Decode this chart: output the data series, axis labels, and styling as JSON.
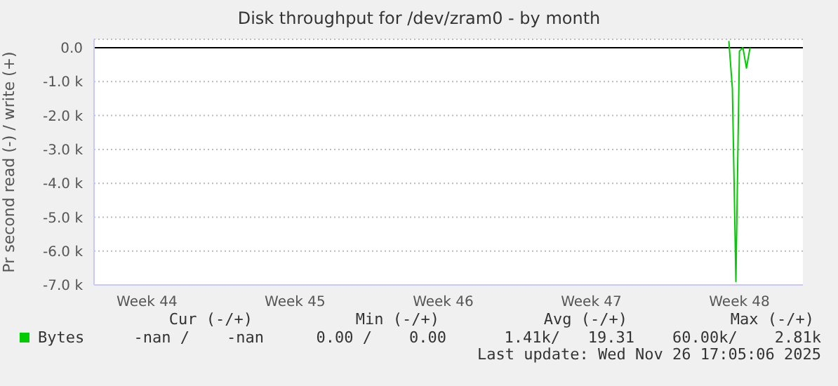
{
  "chart_data": {
    "type": "line",
    "title": "Disk throughput for /dev/zram0 - by month",
    "ylabel": "Pr second read (-) / write (+)",
    "categories": [
      null,
      null,
      null,
      null,
      null,
      null,
      null,
      null,
      null,
      null,
      null,
      null,
      null,
      null,
      null,
      "Week 44",
      null,
      null,
      null,
      null,
      null,
      null,
      null,
      null,
      null,
      null,
      null,
      null,
      null,
      null,
      null,
      null,
      null,
      null,
      null,
      null,
      null,
      null,
      null,
      null,
      null,
      null,
      null,
      null,
      null,
      null,
      null,
      null,
      null,
      null,
      null,
      null,
      null,
      null,
      null,
      null,
      null,
      "Week 45",
      null,
      null,
      null,
      null,
      null,
      null,
      null,
      null,
      null,
      null,
      null,
      null,
      null,
      null,
      null,
      null,
      null,
      null,
      null,
      null,
      null,
      null,
      null,
      null,
      null,
      null,
      null,
      null,
      null,
      null,
      null,
      null,
      null,
      null,
      null,
      null,
      null,
      null,
      null,
      null,
      null,
      "Week 46",
      null,
      null,
      null,
      null,
      null,
      null,
      null,
      null,
      null,
      null,
      null,
      null,
      null,
      null,
      null,
      null,
      null,
      null,
      null,
      null,
      null,
      null,
      null,
      null,
      null,
      null,
      null,
      null,
      null,
      null,
      null,
      null,
      null,
      null,
      null,
      null,
      null,
      null,
      null,
      null,
      null,
      "Week 47",
      null,
      null,
      null,
      null,
      null,
      null,
      null,
      null,
      null,
      null,
      null,
      null,
      null,
      null,
      null,
      null,
      null,
      null,
      null,
      null,
      null,
      null,
      null,
      null,
      null,
      null,
      null,
      null,
      null,
      null,
      null,
      null,
      null,
      null,
      null,
      null,
      null,
      null,
      null,
      null,
      null,
      "Week 48",
      null,
      null,
      null,
      null,
      null,
      null,
      null,
      null,
      null,
      null,
      null,
      null,
      null,
      null,
      null,
      null,
      null,
      null
    ],
    "series": [
      {
        "name": "Bytes",
        "color": "#00cc00",
        "values": [
          null,
          null,
          null,
          null,
          null,
          null,
          null,
          null,
          null,
          null,
          null,
          null,
          null,
          null,
          null,
          null,
          null,
          null,
          null,
          null,
          null,
          null,
          null,
          null,
          null,
          null,
          null,
          null,
          null,
          null,
          null,
          null,
          null,
          null,
          null,
          null,
          null,
          null,
          null,
          null,
          null,
          null,
          null,
          null,
          null,
          null,
          null,
          null,
          null,
          null,
          null,
          null,
          null,
          null,
          null,
          null,
          null,
          null,
          null,
          null,
          null,
          null,
          null,
          null,
          null,
          null,
          null,
          null,
          null,
          null,
          null,
          null,
          null,
          null,
          null,
          null,
          null,
          null,
          null,
          null,
          null,
          null,
          null,
          null,
          null,
          null,
          null,
          null,
          null,
          null,
          null,
          null,
          null,
          null,
          null,
          null,
          null,
          null,
          null,
          null,
          null,
          null,
          null,
          null,
          null,
          null,
          null,
          null,
          null,
          null,
          null,
          null,
          null,
          null,
          null,
          null,
          null,
          null,
          null,
          null,
          null,
          null,
          null,
          null,
          null,
          null,
          null,
          null,
          null,
          null,
          null,
          null,
          null,
          null,
          null,
          null,
          null,
          null,
          null,
          null,
          null,
          null,
          null,
          null,
          null,
          null,
          null,
          null,
          null,
          null,
          null,
          null,
          null,
          null,
          null,
          null,
          null,
          null,
          null,
          null,
          null,
          null,
          null,
          null,
          null,
          null,
          null,
          null,
          null,
          null,
          null,
          null,
          null,
          null,
          null,
          null,
          null,
          null,
          null,
          null,
          200,
          -1200,
          -6900,
          -100,
          0,
          -600,
          0,
          null,
          null,
          null,
          null,
          null,
          null,
          null,
          null,
          null,
          null,
          null,
          null,
          null,
          null,
          null
        ]
      }
    ],
    "ylim": [
      -7000,
      250
    ],
    "yticks": [
      {
        "value": 0,
        "label": "0.0"
      },
      {
        "value": -1000,
        "label": "-1.0 k"
      },
      {
        "value": -2000,
        "label": "-2.0 k"
      },
      {
        "value": -3000,
        "label": "-3.0 k"
      },
      {
        "value": -4000,
        "label": "-4.0 k"
      },
      {
        "value": -5000,
        "label": "-5.0 k"
      },
      {
        "value": -6000,
        "label": "-6.0 k"
      },
      {
        "value": -7000,
        "label": "-7.0 k"
      }
    ],
    "grid": "y",
    "legend": "bottom",
    "marker": "none",
    "line_style": "solid",
    "ref_lines": [
      {
        "axis": "y",
        "value": 0,
        "label": null,
        "color": "#000000"
      }
    ],
    "annotations": [
      "Cur (-/+)",
      "Min (-/+)",
      "Avg (-/+)",
      "Max (-/+)",
      "-nan /    -nan",
      "0.00 /    0.00",
      "1.41k/   19.31",
      "60.00k/    2.81k",
      "Last update: Wed Nov 26 17:05:06 2025"
    ]
  }
}
